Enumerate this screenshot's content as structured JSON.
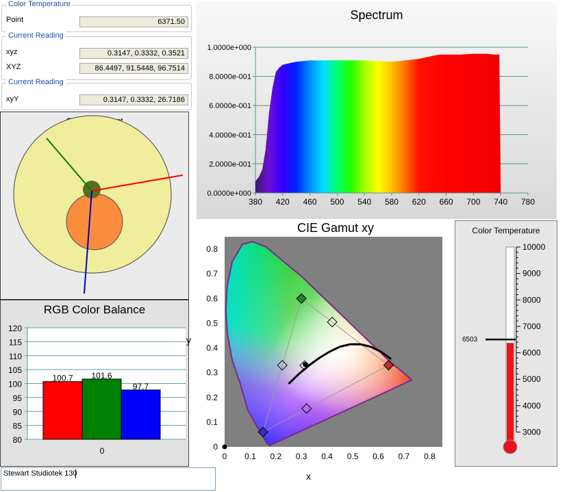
{
  "color_temp_group": {
    "title": "Color Temperature",
    "field_label": "Point",
    "field_value": "6371.50"
  },
  "reading_group_1": {
    "title": "Current Reading",
    "fields": [
      {
        "label": "xyz",
        "value": "0.3147, 0.3332, 0.3521"
      },
      {
        "label": "XYZ",
        "value": "86.4497, 91.5448, 96.7514"
      }
    ]
  },
  "reading_group_2": {
    "title": "Current Reading",
    "fields": [
      {
        "label": "xyY",
        "value": "0.3147, 0.3332, 26.7186"
      }
    ]
  },
  "grayscale_target": {
    "title": "Grayscale Target"
  },
  "spectrum": {
    "title": "Spectrum"
  },
  "cie": {
    "title": "CIE Gamut xy",
    "ylabel": "y",
    "xlabel": "x"
  },
  "rgb_balance": {
    "title": "RGB Color Balance",
    "x_label": "0"
  },
  "thermo": {
    "title": "Color Temperature",
    "marker_label": "6503"
  },
  "notes": {
    "value": "Stewart Studiotek 130"
  },
  "chart_data": [
    {
      "type": "area",
      "title": "Spectrum",
      "x_ticks": [
        380,
        420,
        460,
        500,
        540,
        580,
        620,
        660,
        700,
        740,
        780
      ],
      "y_ticks": [
        "0.0000e+000",
        "2.0000e-001",
        "4.0000e-001",
        "6.0000e-001",
        "8.0000e-001",
        "1.0000e+000"
      ],
      "xlim": [
        380,
        780
      ],
      "ylim": [
        0,
        1
      ],
      "x": [
        380,
        385,
        390,
        395,
        400,
        405,
        410,
        415,
        420,
        430,
        440,
        460,
        480,
        500,
        520,
        540,
        560,
        580,
        600,
        620,
        640,
        650,
        660,
        680,
        700,
        720,
        730,
        738,
        740
      ],
      "y": [
        0.08,
        0.11,
        0.16,
        0.3,
        0.55,
        0.72,
        0.83,
        0.86,
        0.88,
        0.89,
        0.9,
        0.91,
        0.91,
        0.91,
        0.91,
        0.91,
        0.905,
        0.9,
        0.91,
        0.92,
        0.94,
        0.95,
        0.95,
        0.95,
        0.955,
        0.955,
        0.95,
        0.95,
        0
      ]
    },
    {
      "type": "bar",
      "title": "RGB Color Balance",
      "categories": [
        "Red",
        "Green",
        "Blue"
      ],
      "values": [
        100.7,
        101.6,
        97.7
      ],
      "data_labels": [
        "100.7",
        "101.6",
        "97.7"
      ],
      "colors": [
        "#ff0000",
        "#008000",
        "#0000ff"
      ],
      "ylim": [
        80,
        120
      ],
      "y_ticks": [
        80,
        85,
        90,
        95,
        100,
        105,
        110,
        115,
        120
      ]
    },
    {
      "type": "scatter",
      "title": "CIE Gamut xy",
      "xlabel": "x",
      "ylabel": "y",
      "xlim": [
        0,
        0.85
      ],
      "ylim": [
        0,
        0.85
      ],
      "x_ticks": [
        0,
        0.1,
        0.2,
        0.3,
        0.4,
        0.5,
        0.6,
        0.7,
        0.8
      ],
      "y_ticks": [
        0,
        0.1,
        0.2,
        0.3,
        0.4,
        0.5,
        0.6,
        0.7,
        0.8
      ],
      "target_triangle": [
        [
          0.64,
          0.33
        ],
        [
          0.3,
          0.6
        ],
        [
          0.15,
          0.06
        ]
      ],
      "measured_points": [
        [
          0.64,
          0.33
        ],
        [
          0.3,
          0.6
        ],
        [
          0.15,
          0.06
        ],
        [
          0.225,
          0.33
        ],
        [
          0.42,
          0.505
        ],
        [
          0.32,
          0.155
        ],
        [
          0.3127,
          0.329
        ]
      ],
      "current_reading": [
        0.3147,
        0.3332
      ],
      "origin_marker": [
        0,
        0
      ]
    },
    {
      "type": "gauge",
      "title": "Color Temperature",
      "ticks": [
        3000,
        4000,
        5000,
        6000,
        7000,
        8000,
        9000,
        10000
      ],
      "range": [
        2700,
        10000
      ],
      "value": 6371.5,
      "marker": 6503
    },
    {
      "type": "polar",
      "title": "Grayscale Target",
      "colors": {
        "outer": "#f0ee9c",
        "inner": "#fb8c3e",
        "center": "#5d6b22"
      }
    }
  ]
}
